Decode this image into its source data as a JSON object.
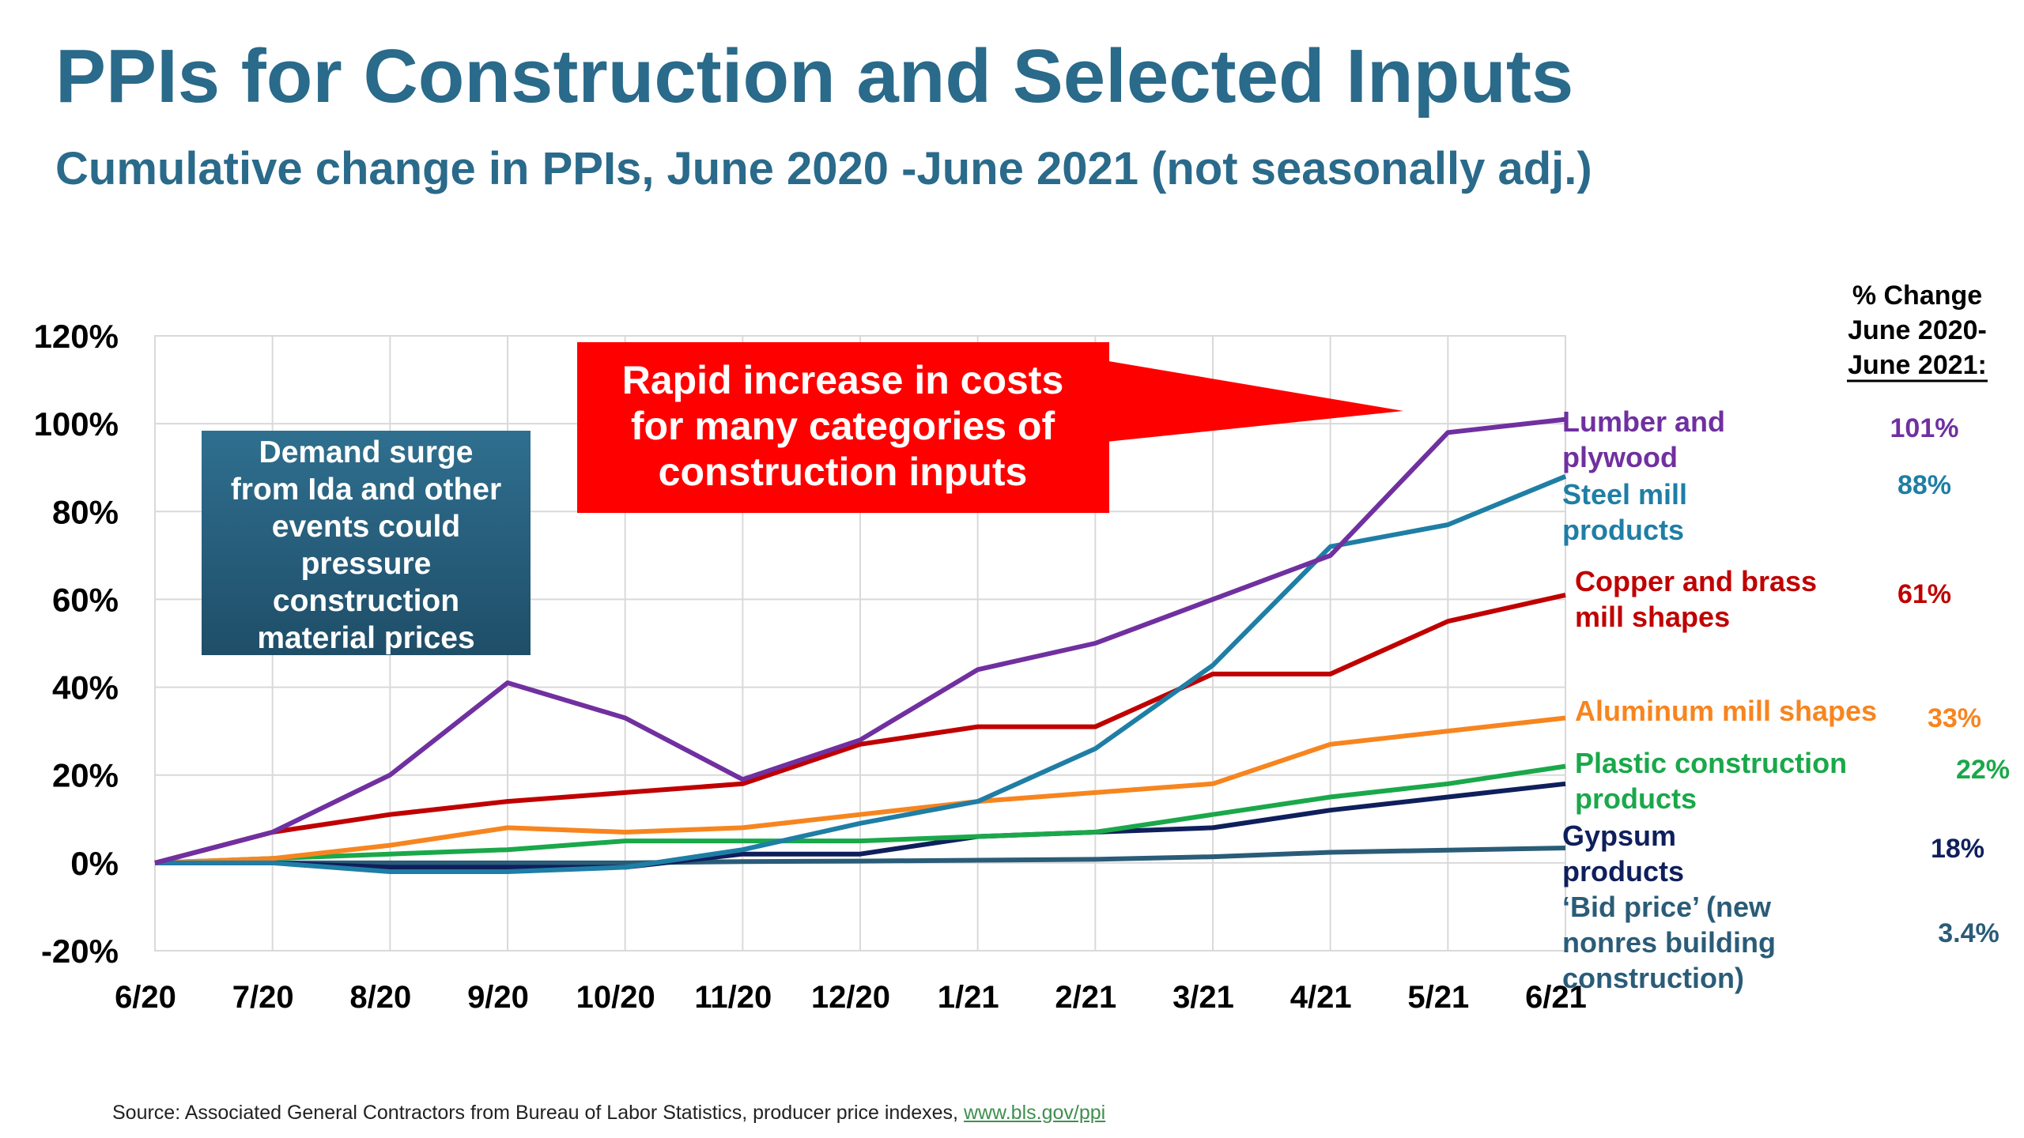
{
  "header": {
    "title": "PPIs for Construction and Selected Inputs",
    "subtitle": "Cumulative change in PPIs, June 2020 -June 2021 (not seasonally adj.)"
  },
  "change_header": [
    "% Change",
    "June 2020-",
    "June 2021:"
  ],
  "callouts": {
    "demand_box": [
      "Demand surge",
      "from Ida and other",
      "events could",
      "pressure",
      "construction",
      "material prices"
    ],
    "demand_box_color": "#1f4e68",
    "rapid_box": [
      "Rapid increase in costs",
      "for many categories of",
      "construction inputs"
    ],
    "rapid_box_color": "#ff0000"
  },
  "source": {
    "text": "Source: Associated General Contractors from Bureau of Labor Statistics, producer price indexes,",
    "link": "www.bls.gov/ppi"
  },
  "chart_data": {
    "type": "line",
    "x": [
      "6/20",
      "7/20",
      "8/20",
      "9/20",
      "10/20",
      "11/20",
      "12/20",
      "1/21",
      "2/21",
      "3/21",
      "4/21",
      "5/21",
      "6/21"
    ],
    "y_ticks": [
      "120%",
      "100%",
      "80%",
      "60%",
      "40%",
      "20%",
      "0%",
      "-20%"
    ],
    "ylim": [
      -20,
      120
    ],
    "grid": true,
    "series": [
      {
        "name": "Lumber and plywood",
        "label_lines": [
          "Lumber and",
          "plywood"
        ],
        "change": "101%",
        "color": "#7030a0",
        "values": [
          0,
          7,
          20,
          41,
          33,
          19,
          28,
          44,
          50,
          60,
          70,
          98,
          101
        ]
      },
      {
        "name": "Steel mill products",
        "label_lines": [
          "Steel mill",
          "products"
        ],
        "change": "88%",
        "color": "#1f7ea5",
        "values": [
          0,
          0,
          -2,
          -2,
          -1,
          3,
          9,
          14,
          26,
          45,
          72,
          77,
          88
        ]
      },
      {
        "name": "Copper and brass mill shapes",
        "label_lines": [
          "Copper and brass",
          "mill shapes"
        ],
        "change": "61%",
        "color": "#c00000",
        "values": [
          0,
          7,
          11,
          14,
          16,
          18,
          27,
          31,
          31,
          43,
          43,
          55,
          61
        ]
      },
      {
        "name": "Aluminum mill shapes",
        "label_lines": [
          "Aluminum mill shapes"
        ],
        "change": "33%",
        "color": "#f7851f",
        "values": [
          0,
          1,
          4,
          8,
          7,
          8,
          11,
          14,
          16,
          18,
          27,
          30,
          33
        ]
      },
      {
        "name": "Plastic construction products",
        "label_lines": [
          "Plastic construction",
          "products"
        ],
        "change": "22%",
        "color": "#1aa84a",
        "values": [
          0,
          1,
          2,
          3,
          5,
          5,
          5,
          6,
          7,
          11,
          15,
          18,
          22
        ]
      },
      {
        "name": "Gypsum products",
        "label_lines": [
          "Gypsum",
          "products"
        ],
        "change": "18%",
        "color": "#0f1f5c",
        "values": [
          0,
          0,
          -1,
          -1,
          -1,
          2,
          2,
          6,
          7,
          8,
          12,
          15,
          18
        ]
      },
      {
        "name": "‘Bid price’ (new nonres building construction)",
        "label_lines": [
          "‘Bid price’ (new",
          "nonres building",
          "construction)"
        ],
        "change": "3.4%",
        "color": "#2a5c78",
        "values": [
          0,
          0,
          0,
          0,
          0,
          0.3,
          0.4,
          0.6,
          0.8,
          1.4,
          2.4,
          2.9,
          3.4
        ]
      }
    ]
  }
}
